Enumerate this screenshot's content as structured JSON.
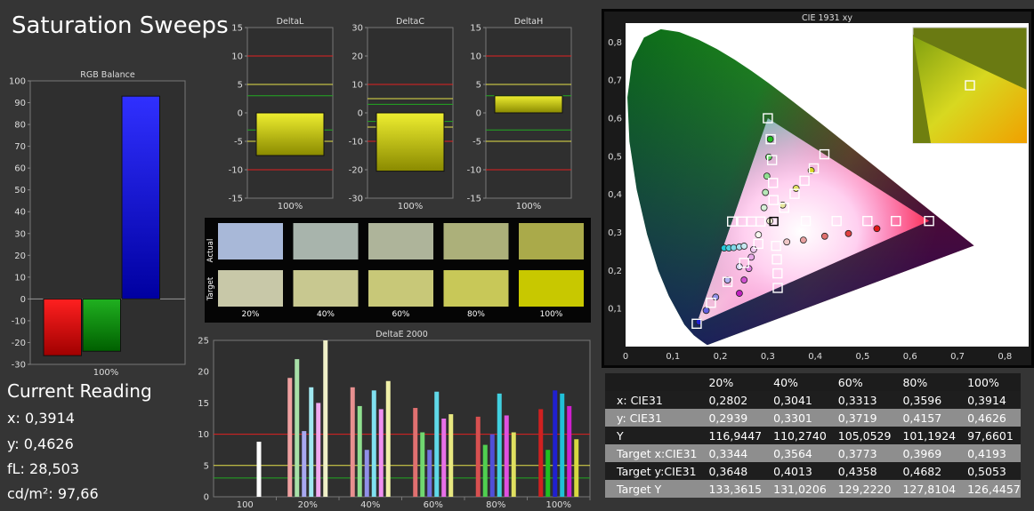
{
  "page": {
    "title": "Saturation Sweeps"
  },
  "reading": {
    "heading": "Current Reading",
    "x": "x: 0,3914",
    "y": "y: 0,4626",
    "fl": "fL: 28,503",
    "cdm2": "cd/m²: 97,66"
  },
  "colors": {
    "bg": "#353535",
    "panel": "#2f2f2f",
    "yellow_bar": "#c8c800",
    "red_line": "#e02020",
    "yellow_line": "#e6e04a",
    "green_line": "#22aa22"
  },
  "chart_data": [
    {
      "id": "rgb",
      "type": "bar",
      "title": "RGB Balance",
      "categories": [
        "100%"
      ],
      "series": [
        {
          "color": "red",
          "values": [
            -26
          ]
        },
        {
          "color": "green",
          "values": [
            -24
          ]
        },
        {
          "color": "blue",
          "values": [
            93
          ]
        }
      ],
      "ylim": [
        -30,
        100
      ],
      "yticks": [
        "-30",
        "-20",
        "-10",
        "0",
        "10",
        "20",
        "30",
        "40",
        "50",
        "60",
        "70",
        "80",
        "90",
        "100"
      ]
    },
    {
      "id": "deltaL",
      "type": "bar",
      "title": "DeltaL",
      "categories": [
        "100%"
      ],
      "values": [
        -7.5
      ],
      "ylim": [
        -15,
        15
      ],
      "yticks": [
        "-15",
        "-10",
        "-5",
        "0",
        "5",
        "10",
        "15"
      ]
    },
    {
      "id": "deltaC",
      "type": "bar",
      "title": "DeltaC",
      "categories": [
        "100%"
      ],
      "values": [
        -20.5
      ],
      "ylim": [
        -30,
        30
      ],
      "yticks": [
        "-30",
        "-20",
        "-10",
        "0",
        "10",
        "20",
        "30"
      ]
    },
    {
      "id": "deltaH",
      "type": "bar",
      "title": "DeltaH",
      "categories": [
        "100%"
      ],
      "values": [
        3
      ],
      "ylim": [
        -15,
        15
      ],
      "yticks": [
        "-15",
        "-10",
        "-5",
        "0",
        "5",
        "10",
        "15"
      ]
    },
    {
      "id": "deltaE",
      "type": "bar",
      "title": "DeltaE 2000",
      "categories": [
        "100",
        "20%",
        "40%",
        "60%",
        "80%",
        "100%"
      ],
      "groups": [
        {
          "label": "100",
          "bars": [
            {
              "v": 8.8,
              "c": "#ffffff"
            }
          ]
        },
        {
          "label": "20%",
          "bars": [
            {
              "v": 19,
              "c": "#f0a0a0"
            },
            {
              "v": 22,
              "c": "#a8e0a8"
            },
            {
              "v": 10.5,
              "c": "#a8a8f0"
            },
            {
              "v": 17.5,
              "c": "#a0e8f0"
            },
            {
              "v": 15,
              "c": "#f0a8f0"
            },
            {
              "v": 25,
              "c": "#f0f0c8"
            }
          ]
        },
        {
          "label": "40%",
          "bars": [
            {
              "v": 17.5,
              "c": "#e89090"
            },
            {
              "v": 14.5,
              "c": "#90e090"
            },
            {
              "v": 7.5,
              "c": "#9090e8"
            },
            {
              "v": 17,
              "c": "#80e0f0"
            },
            {
              "v": 14,
              "c": "#f090f0"
            },
            {
              "v": 18.5,
              "c": "#f0f0a8"
            }
          ]
        },
        {
          "label": "60%",
          "bars": [
            {
              "v": 14.2,
              "c": "#e07070"
            },
            {
              "v": 10.3,
              "c": "#70d870"
            },
            {
              "v": 7.5,
              "c": "#7070e0"
            },
            {
              "v": 16.8,
              "c": "#60d8e8"
            },
            {
              "v": 12.5,
              "c": "#e870e8"
            },
            {
              "v": 13.2,
              "c": "#e8e880"
            }
          ]
        },
        {
          "label": "80%",
          "bars": [
            {
              "v": 12.8,
              "c": "#d85050"
            },
            {
              "v": 8.3,
              "c": "#50d050"
            },
            {
              "v": 10,
              "c": "#5050d8"
            },
            {
              "v": 16.5,
              "c": "#40d0e0"
            },
            {
              "v": 13,
              "c": "#e050e0"
            },
            {
              "v": 10.3,
              "c": "#e0e060"
            }
          ]
        },
        {
          "label": "100%",
          "bars": [
            {
              "v": 14,
              "c": "#d02020"
            },
            {
              "v": 7.5,
              "c": "#20c020"
            },
            {
              "v": 17,
              "c": "#2020d0"
            },
            {
              "v": 16.5,
              "c": "#20c0d8"
            },
            {
              "v": 14.5,
              "c": "#d020d0"
            },
            {
              "v": 9.2,
              "c": "#d8d840"
            }
          ]
        }
      ],
      "ylim": [
        0,
        25
      ],
      "yticks": [
        "0",
        "5",
        "10",
        "15",
        "20",
        "25"
      ]
    },
    {
      "id": "cie",
      "type": "scatter",
      "title": "CIE 1931 xy",
      "xlim": [
        0,
        0.85
      ],
      "ylim": [
        0,
        0.85
      ],
      "xticks": [
        "0",
        "0,1",
        "0,2",
        "0,3",
        "0,4",
        "0,5",
        "0,6",
        "0,7",
        "0,8"
      ],
      "yticks": [
        "0,1",
        "0,2",
        "0,3",
        "0,4",
        "0,5",
        "0,6",
        "0,7",
        "0,8"
      ],
      "gamut": [
        [
          0.64,
          0.33
        ],
        [
          0.3,
          0.6
        ],
        [
          0.15,
          0.06
        ]
      ],
      "white": [
        0.3127,
        0.329
      ],
      "targets": [
        [
          0.64,
          0.33
        ],
        [
          0.57,
          0.33
        ],
        [
          0.51,
          0.33
        ],
        [
          0.445,
          0.33
        ],
        [
          0.38,
          0.33
        ],
        [
          0.3,
          0.6
        ],
        [
          0.306,
          0.545
        ],
        [
          0.309,
          0.49
        ],
        [
          0.311,
          0.43
        ],
        [
          0.312,
          0.385
        ],
        [
          0.15,
          0.06
        ],
        [
          0.18,
          0.115
        ],
        [
          0.215,
          0.17
        ],
        [
          0.25,
          0.22
        ],
        [
          0.28,
          0.27
        ],
        [
          0.2246,
          0.3287
        ],
        [
          0.2459,
          0.3287
        ],
        [
          0.2657,
          0.3288
        ],
        [
          0.2847,
          0.3287
        ],
        [
          0.3209,
          0.1542
        ],
        [
          0.3205,
          0.1924
        ],
        [
          0.3191,
          0.2292
        ],
        [
          0.3175,
          0.2647
        ],
        [
          0.3344,
          0.3648
        ],
        [
          0.3564,
          0.4013
        ],
        [
          0.3773,
          0.4358
        ],
        [
          0.3969,
          0.4682
        ],
        [
          0.4193,
          0.5053
        ]
      ],
      "measured": [
        {
          "x": 0.53,
          "y": 0.31,
          "c": "#e01818"
        },
        {
          "x": 0.47,
          "y": 0.297,
          "c": "#e04040"
        },
        {
          "x": 0.42,
          "y": 0.29,
          "c": "#e07070"
        },
        {
          "x": 0.375,
          "y": 0.28,
          "c": "#e8a0a0"
        },
        {
          "x": 0.34,
          "y": 0.275,
          "c": "#f0c8c8"
        },
        {
          "x": 0.305,
          "y": 0.545,
          "c": "#20c020"
        },
        {
          "x": 0.302,
          "y": 0.498,
          "c": "#60d060"
        },
        {
          "x": 0.298,
          "y": 0.448,
          "c": "#90e090"
        },
        {
          "x": 0.295,
          "y": 0.405,
          "c": "#b8e8b8"
        },
        {
          "x": 0.292,
          "y": 0.365,
          "c": "#d8f0d8"
        },
        {
          "x": 0.155,
          "y": 0.065,
          "c": "#2020d0"
        },
        {
          "x": 0.17,
          "y": 0.095,
          "c": "#6060e0"
        },
        {
          "x": 0.19,
          "y": 0.13,
          "c": "#9090e8"
        },
        {
          "x": 0.215,
          "y": 0.175,
          "c": "#b0b0f0"
        },
        {
          "x": 0.24,
          "y": 0.21,
          "c": "#d0d0f0"
        },
        {
          "x": 0.208,
          "y": 0.259,
          "c": "#20c8d8"
        },
        {
          "x": 0.218,
          "y": 0.259,
          "c": "#50d0e0"
        },
        {
          "x": 0.228,
          "y": 0.26,
          "c": "#80d8e8"
        },
        {
          "x": 0.24,
          "y": 0.262,
          "c": "#a8e0f0"
        },
        {
          "x": 0.25,
          "y": 0.264,
          "c": "#c8e8f0"
        },
        {
          "x": 0.24,
          "y": 0.14,
          "c": "#c020c0"
        },
        {
          "x": 0.25,
          "y": 0.175,
          "c": "#d050d0"
        },
        {
          "x": 0.26,
          "y": 0.205,
          "c": "#e080e0"
        },
        {
          "x": 0.265,
          "y": 0.235,
          "c": "#e8a8e8"
        },
        {
          "x": 0.27,
          "y": 0.255,
          "c": "#f0c8f0"
        },
        {
          "x": 0.3041,
          "y": 0.3301,
          "c": "#f0f0d0"
        },
        {
          "x": 0.3313,
          "y": 0.3719,
          "c": "#e8e8a0"
        },
        {
          "x": 0.3596,
          "y": 0.4157,
          "c": "#e0e060"
        },
        {
          "x": 0.3914,
          "y": 0.4626,
          "c": "#d8d820"
        },
        {
          "x": 0.2802,
          "y": 0.2939,
          "c": "#f8f8f0"
        }
      ],
      "inset_marker": [
        0.3914,
        0.4626
      ]
    }
  ],
  "swatches": {
    "row_actual": "Actual",
    "row_target": "Target",
    "labels": [
      "20%",
      "40%",
      "60%",
      "80%",
      "100%"
    ],
    "actual_colors": [
      "#a8b8d8",
      "#a8b4ac",
      "#aeb49a",
      "#acb07a",
      "#aaaa4a"
    ],
    "target_colors": [
      "#c8c8a8",
      "#c8c890",
      "#c8c878",
      "#c8c858",
      "#c8c800"
    ]
  },
  "table": {
    "columns": [
      "",
      "20%",
      "40%",
      "60%",
      "80%",
      "100%"
    ],
    "rows": [
      [
        "x: CIE31",
        "0,2802",
        "0,3041",
        "0,3313",
        "0,3596",
        "0,3914"
      ],
      [
        "y: CIE31",
        "0,2939",
        "0,3301",
        "0,3719",
        "0,4157",
        "0,4626"
      ],
      [
        "Y",
        "116,9447",
        "110,2740",
        "105,0529",
        "101,1924",
        "97,6601"
      ],
      [
        "Target x:CIE31",
        "0,3344",
        "0,3564",
        "0,3773",
        "0,3969",
        "0,4193"
      ],
      [
        "Target y:CIE31",
        "0,3648",
        "0,4013",
        "0,4358",
        "0,4682",
        "0,5053"
      ],
      [
        "Target Y",
        "133,3615",
        "131,0206",
        "129,2220",
        "127,8104",
        "126,4457"
      ]
    ]
  }
}
